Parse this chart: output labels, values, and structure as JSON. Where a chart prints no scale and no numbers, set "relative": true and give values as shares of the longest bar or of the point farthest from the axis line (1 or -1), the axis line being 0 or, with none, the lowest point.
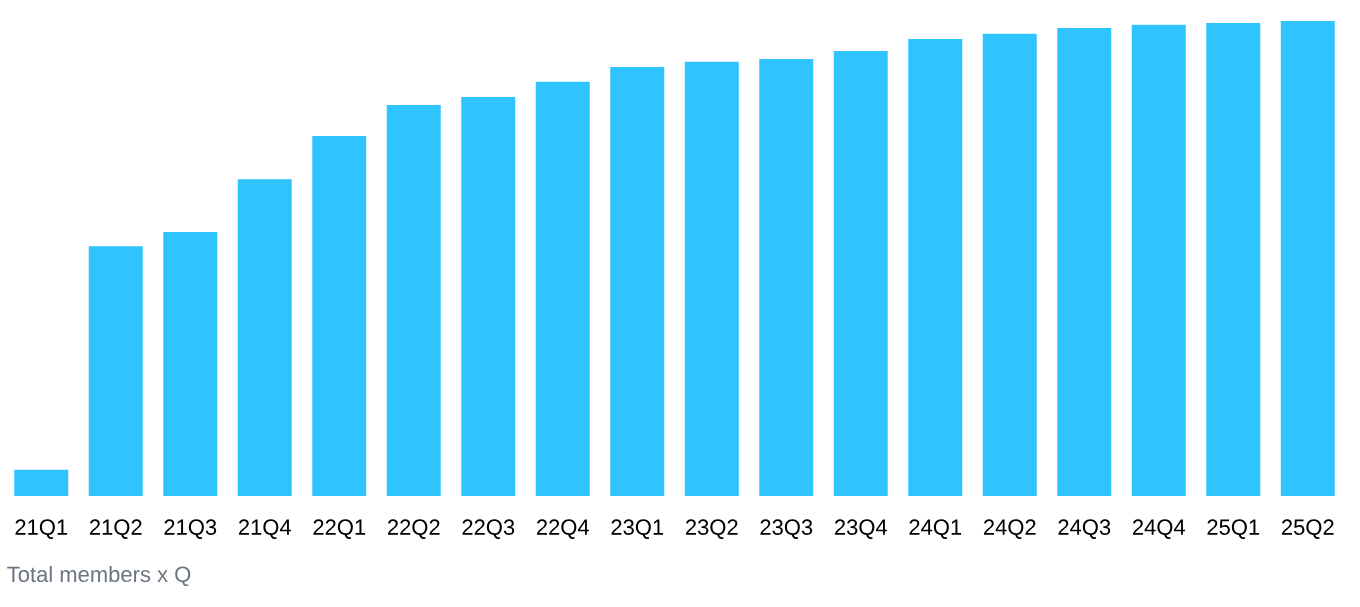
{
  "chart_data": {
    "type": "bar",
    "relative": true,
    "categories": [
      "21Q1",
      "21Q2",
      "21Q3",
      "21Q4",
      "22Q1",
      "22Q2",
      "22Q3",
      "22Q4",
      "23Q1",
      "23Q2",
      "23Q3",
      "23Q4",
      "24Q1",
      "24Q2",
      "24Q3",
      "24Q4",
      "25Q1",
      "25Q2"
    ],
    "values": [
      0.055,
      0.526,
      0.556,
      0.667,
      0.758,
      0.823,
      0.84,
      0.872,
      0.903,
      0.914,
      0.92,
      0.937,
      0.962,
      0.973,
      0.985,
      0.992,
      0.996,
      1
    ],
    "color": "#30c4ff",
    "annotations": [
      "Total members x Q"
    ]
  }
}
